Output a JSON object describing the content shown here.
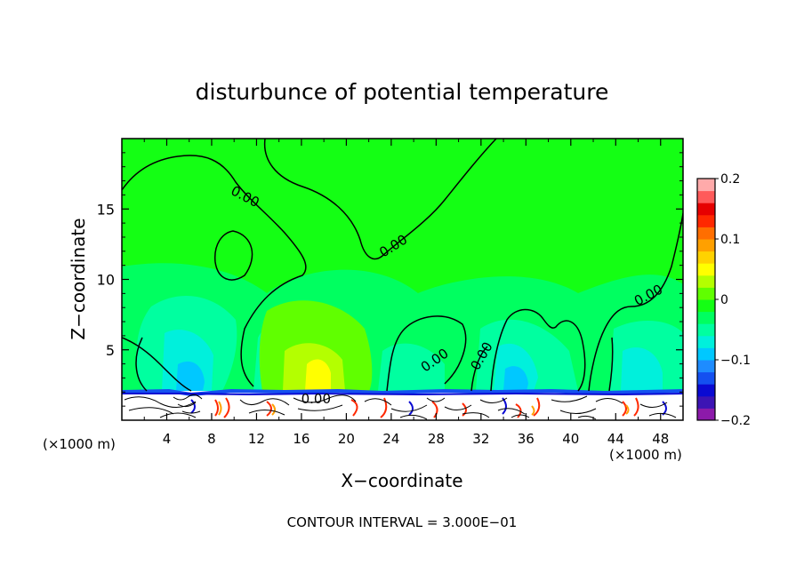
{
  "chart_data": {
    "type": "heatmap",
    "title": "disturbunce of potential temperature",
    "xlabel": "X−coordinate",
    "ylabel": "Z−coordinate",
    "x_unit_left": "(×1000 m)",
    "x_unit_right": "(×1000 m)",
    "footer": "CONTOUR INTERVAL = 3.000E−01",
    "xlim": [
      0,
      50
    ],
    "ylim": [
      0,
      20
    ],
    "x_ticks": [
      4,
      8,
      12,
      16,
      20,
      24,
      28,
      32,
      36,
      40,
      44,
      48
    ],
    "y_ticks": [
      5,
      10,
      15
    ],
    "colorbar": {
      "range": [
        -0.2,
        0.2
      ],
      "ticks": [
        {
          "value": 0.2,
          "label": "0.2"
        },
        {
          "value": 0.1,
          "label": "0.1"
        },
        {
          "value": 0,
          "label": "0"
        },
        {
          "value": -0.1,
          "label": "−0.1"
        },
        {
          "value": -0.2,
          "label": "−0.2"
        }
      ],
      "colors": [
        "#8c1aaa",
        "#3c14b4",
        "#0a0ad2",
        "#1450f0",
        "#1e8cff",
        "#00c8ff",
        "#00f0dc",
        "#00ffa0",
        "#00ff60",
        "#14ff14",
        "#60ff00",
        "#b4ff00",
        "#ffff00",
        "#ffd200",
        "#ffa000",
        "#ff6e00",
        "#ff2800",
        "#e60000",
        "#ff5a5a",
        "#ffaaaa"
      ]
    },
    "background_color": "#14ff14",
    "contour_labels": [
      {
        "text": "0.00",
        "x": 10.8,
        "y": 15.6,
        "angle": 28
      },
      {
        "text": "0.00",
        "x": 24.4,
        "y": 12.1,
        "angle": -32
      },
      {
        "text": "0.00",
        "x": 47.1,
        "y": 8.6,
        "angle": -28
      },
      {
        "text": "0.00",
        "x": 28.1,
        "y": 4.0,
        "angle": -35
      },
      {
        "text": "0.00",
        "x": 32.4,
        "y": 4.4,
        "angle": -60
      },
      {
        "text": "0.00",
        "x": 17.3,
        "y": 1.2,
        "angle": 0
      }
    ]
  }
}
